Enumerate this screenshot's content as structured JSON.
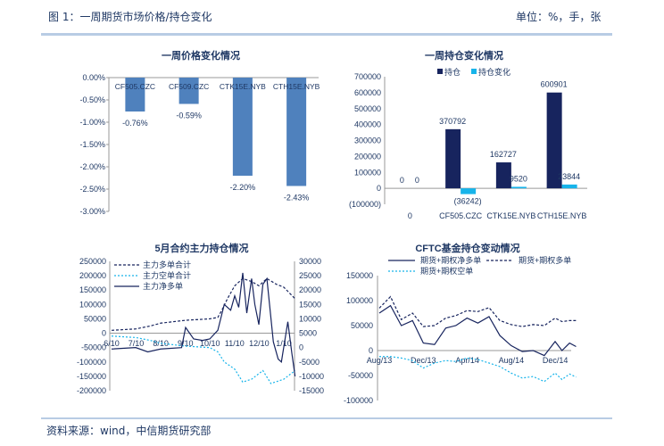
{
  "header": {
    "title": "图 1：一周期货市场价格/持仓变化",
    "unit": "单位：%，手，张"
  },
  "footer": {
    "source": "资料来源：wind，中信期货研究部"
  },
  "colors": {
    "bar_blue": "#4f81bd",
    "navy": "#17245e",
    "cyan": "#17b4ea",
    "negative_label": "#ff0000",
    "rule": "#b8cce4"
  },
  "chart_data": [
    {
      "type": "bar",
      "title": "一周价格变化情况",
      "categories": [
        "CF505.CZC",
        "CF509.CZC",
        "CTK15E.NYB",
        "CTH15E.NYB"
      ],
      "values": [
        -0.76,
        -0.59,
        -2.2,
        -2.43
      ],
      "data_labels": [
        "-0.76%",
        "-0.59%",
        "-2.20%",
        "-2.43%"
      ],
      "ylim": [
        -3.0,
        0.0
      ],
      "yticks": [
        "0.00%",
        "-0.50%",
        "-1.00%",
        "-1.50%",
        "-2.00%",
        "-2.50%",
        "-3.00%"
      ],
      "grid": false
    },
    {
      "type": "bar",
      "title": "一周持仓变化情况",
      "categories": [
        "0",
        "CF505.CZC",
        "CTK15E.NYB",
        "CTH15E.NYB"
      ],
      "series": [
        {
          "name": "持仓",
          "values": [
            0,
            370792,
            162727,
            600901
          ],
          "labels": [
            "0",
            "370792",
            "162727",
            "600901"
          ]
        },
        {
          "name": "持仓变化",
          "values": [
            0,
            -36242,
            9520,
            23844
          ],
          "labels": [
            "0",
            "(36242)",
            "9520",
            "23844"
          ]
        }
      ],
      "ylim": [
        -100000,
        700000
      ],
      "yticks": [
        "700000",
        "600000",
        "500000",
        "400000",
        "300000",
        "200000",
        "100000",
        "0",
        "(100000)"
      ],
      "legend": "top",
      "grid": false
    },
    {
      "type": "line",
      "title": "5月合约主力持仓情况",
      "xticks": [
        "6/10",
        "7/10",
        "8/10",
        "9/10",
        "10/10",
        "11/10",
        "12/10",
        "1/10"
      ],
      "ylim": [
        -200000,
        250000
      ],
      "y2lim": [
        -15000,
        30000
      ],
      "yticks": [
        "250000",
        "200000",
        "150000",
        "100000",
        "50000",
        "0",
        "-50000",
        "-100000",
        "-150000",
        "-200000"
      ],
      "y2ticks": [
        "30000",
        "25000",
        "20000",
        "15000",
        "10000",
        "5000",
        "0",
        "-5000",
        "-10000",
        "-15000"
      ],
      "legend": "top-left",
      "series": [
        {
          "name": "主力多单合计",
          "axis": "left",
          "style": "dashed",
          "color": "#17245e",
          "x": [
            "2014-06-10",
            "2014-07-10",
            "2014-07-28",
            "2014-08-10",
            "2014-09-10",
            "2014-10-10",
            "2014-10-20",
            "2014-10-25",
            "2014-11-01",
            "2014-11-10",
            "2014-11-20",
            "2014-12-01",
            "2014-12-10",
            "2014-12-20",
            "2015-01-01",
            "2015-01-10",
            "2015-01-24"
          ],
          "y": [
            10000,
            15000,
            25000,
            35000,
            45000,
            50000,
            55000,
            80000,
            120000,
            165000,
            190000,
            180000,
            165000,
            190000,
            170000,
            160000,
            120000
          ]
        },
        {
          "name": "主力空单合计",
          "axis": "left",
          "style": "dotted",
          "color": "#17b4ea",
          "x": [
            "2014-06-10",
            "2014-07-10",
            "2014-07-28",
            "2014-08-10",
            "2014-09-10",
            "2014-10-10",
            "2014-10-20",
            "2014-10-28",
            "2014-11-10",
            "2014-11-20",
            "2014-12-01",
            "2014-12-15",
            "2014-12-25",
            "2015-01-10",
            "2015-01-24"
          ],
          "y": [
            -10000,
            -15000,
            -25000,
            -35000,
            -45000,
            -50000,
            -65000,
            -100000,
            -125000,
            -170000,
            -160000,
            -130000,
            -175000,
            -160000,
            -130000
          ]
        },
        {
          "name": "主力净多单",
          "axis": "right",
          "style": "solid",
          "color": "#17245e",
          "x": [
            "2014-06-10",
            "2014-07-10",
            "2014-07-25",
            "2014-08-10",
            "2014-09-05",
            "2014-09-10",
            "2014-09-20",
            "2014-10-01",
            "2014-10-10",
            "2014-10-20",
            "2014-10-28",
            "2014-11-05",
            "2014-11-10",
            "2014-11-15",
            "2014-11-20",
            "2014-11-25",
            "2014-12-01",
            "2014-12-05",
            "2014-12-10",
            "2014-12-15",
            "2014-12-20",
            "2014-12-28",
            "2015-01-03",
            "2015-01-07",
            "2015-01-15",
            "2015-01-20",
            "2015-01-24"
          ],
          "y": [
            -500,
            0,
            -1500,
            -500,
            0,
            7000,
            3000,
            2500,
            3000,
            6000,
            15000,
            13000,
            18000,
            14000,
            26000,
            12000,
            24000,
            15000,
            8000,
            22000,
            24000,
            2000,
            -4000,
            -5000,
            9000,
            -2000,
            -10000
          ]
        }
      ],
      "grid": false
    },
    {
      "type": "line",
      "title": "CFTC基金持仓变动情况",
      "xticks": [
        "Aug/13",
        "Dec/13",
        "Apr/14",
        "Aug/14",
        "Dec/14"
      ],
      "ylim": [
        -100000,
        150000
      ],
      "yticks": [
        "150000",
        "100000",
        "50000",
        "0",
        "-50000",
        "-100000"
      ],
      "legend": "top",
      "series": [
        {
          "name": "期货+期权净多单",
          "style": "solid",
          "color": "#17245e",
          "x": [
            "2013-08-01",
            "2013-09-01",
            "2013-10-01",
            "2013-11-01",
            "2013-12-01",
            "2014-01-01",
            "2014-02-01",
            "2014-03-01",
            "2014-04-01",
            "2014-05-01",
            "2014-06-01",
            "2014-07-01",
            "2014-08-01",
            "2014-09-01",
            "2014-10-01",
            "2014-11-01",
            "2014-12-01",
            "2014-12-20",
            "2015-01-10",
            "2015-01-28"
          ],
          "y": [
            75000,
            90000,
            50000,
            60000,
            15000,
            12000,
            45000,
            50000,
            65000,
            55000,
            68000,
            30000,
            10000,
            -2000,
            0,
            -10000,
            18000,
            0,
            15000,
            8000
          ]
        },
        {
          "name": "期货+期权多单",
          "style": "dashed",
          "color": "#17245e",
          "x": [
            "2013-08-01",
            "2013-09-01",
            "2013-10-01",
            "2013-11-01",
            "2013-12-01",
            "2014-01-01",
            "2014-02-01",
            "2014-03-01",
            "2014-04-01",
            "2014-05-01",
            "2014-06-01",
            "2014-07-01",
            "2014-08-01",
            "2014-09-01",
            "2014-10-01",
            "2014-11-01",
            "2014-12-01",
            "2014-12-20",
            "2015-01-10",
            "2015-01-28"
          ],
          "y": [
            85000,
            108000,
            62000,
            75000,
            48000,
            50000,
            65000,
            70000,
            80000,
            78000,
            86000,
            60000,
            52000,
            48000,
            52000,
            50000,
            65000,
            58000,
            60000,
            60000
          ]
        },
        {
          "name": "期货+期权空单",
          "style": "dotted",
          "color": "#17b4ea",
          "x": [
            "2013-08-01",
            "2013-09-01",
            "2013-10-01",
            "2013-11-01",
            "2013-12-01",
            "2014-01-01",
            "2014-02-01",
            "2014-03-01",
            "2014-04-01",
            "2014-05-01",
            "2014-06-01",
            "2014-07-01",
            "2014-08-01",
            "2014-09-01",
            "2014-10-01",
            "2014-11-01",
            "2014-12-01",
            "2014-12-20",
            "2015-01-10",
            "2015-01-28"
          ],
          "y": [
            -12000,
            -12000,
            -15000,
            -20000,
            -35000,
            -25000,
            -20000,
            -22000,
            -15000,
            -18000,
            -25000,
            -32000,
            -45000,
            -55000,
            -52000,
            -62000,
            -45000,
            -58000,
            -47000,
            -53000
          ]
        }
      ],
      "grid": false
    }
  ]
}
